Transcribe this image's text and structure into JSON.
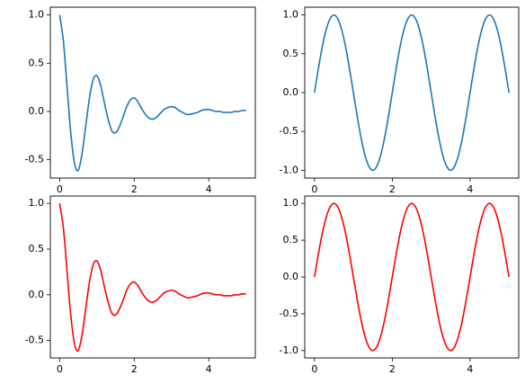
{
  "chart_data": [
    {
      "type": "line",
      "x": [
        0,
        0.1,
        0.2,
        0.3,
        0.4,
        0.5,
        0.6,
        0.7,
        0.8,
        0.9,
        1,
        1.1,
        1.2,
        1.3,
        1.4,
        1.5,
        1.6,
        1.7,
        1.8,
        1.9,
        2,
        2.1,
        2.2,
        2.3,
        2.4,
        2.5,
        2.6,
        2.7,
        2.8,
        2.9,
        3,
        3.1,
        3.2,
        3.3,
        3.4,
        3.5,
        3.6,
        3.7,
        3.8,
        3.9,
        4,
        4.1,
        4.2,
        4.3,
        4.4,
        4.5,
        4.6,
        4.7,
        4.8,
        4.9,
        5
      ],
      "series": [
        {
          "color": "#1f77b4",
          "values": [
            1,
            0.73,
            0.25,
            -0.23,
            -0.54,
            -0.61,
            -0.44,
            -0.15,
            0.14,
            0.33,
            0.37,
            0.27,
            0.09,
            -0.08,
            -0.2,
            -0.22,
            -0.16,
            -0.06,
            0.05,
            0.12,
            0.14,
            0.1,
            0.03,
            -0.03,
            -0.07,
            -0.08,
            -0.06,
            -0.02,
            0.02,
            0.04,
            0.05,
            0.04,
            0.01,
            -0.01,
            -0.03,
            -0.03,
            -0.02,
            -0.01,
            0.01,
            0.02,
            0.02,
            0.01,
            0,
            0,
            -0.01,
            -0.01,
            -0.01,
            0,
            0,
            0.01,
            0.01
          ]
        }
      ],
      "xlim": [
        -0.25,
        5.25
      ],
      "xticks": [
        0,
        2,
        4
      ],
      "ylim": [
        -0.69,
        1.08
      ],
      "yticks": [
        -0.5,
        {
          "value": 0,
          "label": "0.0"
        },
        0.5,
        {
          "value": 1,
          "label": "1.0"
        }
      ]
    },
    {
      "type": "line",
      "x": [
        0,
        0.1,
        0.2,
        0.3,
        0.4,
        0.5,
        0.6,
        0.7,
        0.8,
        0.9,
        1,
        1.1,
        1.2,
        1.3,
        1.4,
        1.5,
        1.6,
        1.7,
        1.8,
        1.9,
        2,
        2.1,
        2.2,
        2.3,
        2.4,
        2.5,
        2.6,
        2.7,
        2.8,
        2.9,
        3,
        3.1,
        3.2,
        3.3,
        3.4,
        3.5,
        3.6,
        3.7,
        3.8,
        3.9,
        4,
        4.1,
        4.2,
        4.3,
        4.4,
        4.5,
        4.6,
        4.7,
        4.8,
        4.9,
        5
      ],
      "series": [
        {
          "color": "#1f77b4",
          "values": [
            0,
            0.31,
            0.59,
            0.81,
            0.95,
            1,
            0.95,
            0.81,
            0.59,
            0.31,
            0,
            -0.31,
            -0.59,
            -0.81,
            -0.95,
            -1,
            -0.95,
            -0.81,
            -0.59,
            -0.31,
            0,
            0.31,
            0.59,
            0.81,
            0.95,
            1,
            0.95,
            0.81,
            0.59,
            0.31,
            0,
            -0.31,
            -0.59,
            -0.81,
            -0.95,
            -1,
            -0.95,
            -0.81,
            -0.59,
            -0.31,
            0,
            0.31,
            0.59,
            0.81,
            0.95,
            1,
            0.95,
            0.81,
            0.59,
            0.31,
            0
          ]
        }
      ],
      "xlim": [
        -0.25,
        5.25
      ],
      "xticks": [
        0,
        2,
        4
      ],
      "ylim": [
        -1.1,
        1.1
      ],
      "yticks": [
        {
          "value": -1,
          "label": "-1.0"
        },
        -0.5,
        {
          "value": 0,
          "label": "0.0"
        },
        0.5,
        {
          "value": 1,
          "label": "1.0"
        }
      ]
    },
    {
      "type": "line",
      "x": [
        0,
        0.1,
        0.2,
        0.3,
        0.4,
        0.5,
        0.6,
        0.7,
        0.8,
        0.9,
        1,
        1.1,
        1.2,
        1.3,
        1.4,
        1.5,
        1.6,
        1.7,
        1.8,
        1.9,
        2,
        2.1,
        2.2,
        2.3,
        2.4,
        2.5,
        2.6,
        2.7,
        2.8,
        2.9,
        3,
        3.1,
        3.2,
        3.3,
        3.4,
        3.5,
        3.6,
        3.7,
        3.8,
        3.9,
        4,
        4.1,
        4.2,
        4.3,
        4.4,
        4.5,
        4.6,
        4.7,
        4.8,
        4.9,
        5
      ],
      "series": [
        {
          "color": "#ff0000",
          "values": [
            1,
            0.73,
            0.25,
            -0.23,
            -0.54,
            -0.61,
            -0.44,
            -0.15,
            0.14,
            0.33,
            0.37,
            0.27,
            0.09,
            -0.08,
            -0.2,
            -0.22,
            -0.16,
            -0.06,
            0.05,
            0.12,
            0.14,
            0.1,
            0.03,
            -0.03,
            -0.07,
            -0.08,
            -0.06,
            -0.02,
            0.02,
            0.04,
            0.05,
            0.04,
            0.01,
            -0.01,
            -0.03,
            -0.03,
            -0.02,
            -0.01,
            0.01,
            0.02,
            0.02,
            0.01,
            0,
            0,
            -0.01,
            -0.01,
            -0.01,
            0,
            0,
            0.01,
            0.01
          ]
        }
      ],
      "xlim": [
        -0.25,
        5.25
      ],
      "xticks": [
        0,
        2,
        4
      ],
      "ylim": [
        -0.69,
        1.08
      ],
      "yticks": [
        -0.5,
        {
          "value": 0,
          "label": "0.0"
        },
        0.5,
        {
          "value": 1,
          "label": "1.0"
        }
      ]
    },
    {
      "type": "line",
      "x": [
        0,
        0.1,
        0.2,
        0.3,
        0.4,
        0.5,
        0.6,
        0.7,
        0.8,
        0.9,
        1,
        1.1,
        1.2,
        1.3,
        1.4,
        1.5,
        1.6,
        1.7,
        1.8,
        1.9,
        2,
        2.1,
        2.2,
        2.3,
        2.4,
        2.5,
        2.6,
        2.7,
        2.8,
        2.9,
        3,
        3.1,
        3.2,
        3.3,
        3.4,
        3.5,
        3.6,
        3.7,
        3.8,
        3.9,
        4,
        4.1,
        4.2,
        4.3,
        4.4,
        4.5,
        4.6,
        4.7,
        4.8,
        4.9,
        5
      ],
      "series": [
        {
          "color": "#ff0000",
          "values": [
            0,
            0.31,
            0.59,
            0.81,
            0.95,
            1,
            0.95,
            0.81,
            0.59,
            0.31,
            0,
            -0.31,
            -0.59,
            -0.81,
            -0.95,
            -1,
            -0.95,
            -0.81,
            -0.59,
            -0.31,
            0,
            0.31,
            0.59,
            0.81,
            0.95,
            1,
            0.95,
            0.81,
            0.59,
            0.31,
            0,
            -0.31,
            -0.59,
            -0.81,
            -0.95,
            -1,
            -0.95,
            -0.81,
            -0.59,
            -0.31,
            0,
            0.31,
            0.59,
            0.81,
            0.95,
            1,
            0.95,
            0.81,
            0.59,
            0.31,
            0
          ]
        }
      ],
      "xlim": [
        -0.25,
        5.25
      ],
      "xticks": [
        0,
        2,
        4
      ],
      "ylim": [
        -1.1,
        1.1
      ],
      "yticks": [
        {
          "value": -1,
          "label": "-1.0"
        },
        -0.5,
        {
          "value": 0,
          "label": "0.0"
        },
        0.5,
        {
          "value": 1,
          "label": "1.0"
        }
      ]
    }
  ]
}
